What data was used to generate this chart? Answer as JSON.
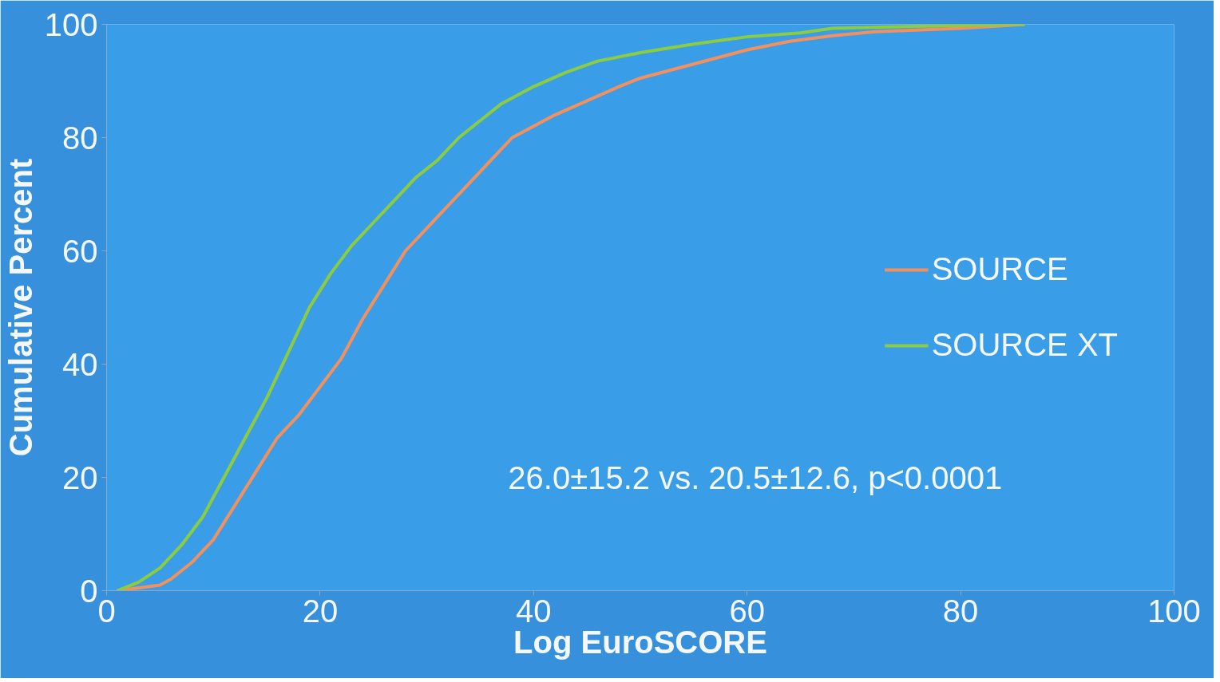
{
  "chart_data": {
    "type": "line",
    "xlabel": "Log EuroSCORE",
    "ylabel": "Cumulative Percent",
    "xlim": [
      0,
      100
    ],
    "ylim": [
      0,
      100
    ],
    "xticks": [
      0,
      20,
      40,
      60,
      80,
      100
    ],
    "yticks": [
      0,
      20,
      40,
      60,
      80,
      100
    ],
    "grid": false,
    "legend": "right",
    "annotations": [
      "26.0±15.2  vs.  20.5±12.6,  p<0.0001"
    ],
    "series": [
      {
        "name": "SOURCE",
        "color": "#f4905c",
        "x": [
          1,
          5,
          6,
          8,
          10,
          12,
          14,
          16,
          18,
          20,
          22,
          24,
          26,
          28,
          30,
          32,
          34,
          36,
          38,
          40,
          42,
          45,
          48,
          50,
          55,
          60,
          64,
          68,
          72,
          80,
          86
        ],
        "values": [
          0,
          1,
          2,
          5,
          9,
          15,
          21,
          27,
          31,
          36,
          41,
          48,
          54,
          60,
          64,
          68,
          72,
          76,
          80,
          82,
          84,
          86.5,
          89,
          90.5,
          93,
          95.5,
          97,
          98,
          98.7,
          99.3,
          100
        ]
      },
      {
        "name": "SOURCE XT",
        "color": "#8ccc40",
        "x": [
          1,
          3,
          5,
          7,
          9,
          11,
          13,
          15,
          17,
          19,
          21,
          23,
          25,
          27,
          29,
          31,
          33,
          35,
          37,
          40,
          43,
          46,
          50,
          55,
          60,
          65,
          68,
          75,
          86
        ],
        "values": [
          0,
          1.5,
          4,
          8,
          13,
          20,
          27,
          34,
          42,
          50,
          56,
          61,
          65,
          69,
          73,
          76,
          80,
          83,
          86,
          89,
          91.5,
          93.5,
          95,
          96.5,
          97.8,
          98.5,
          99.3,
          99.6,
          100
        ]
      }
    ]
  }
}
